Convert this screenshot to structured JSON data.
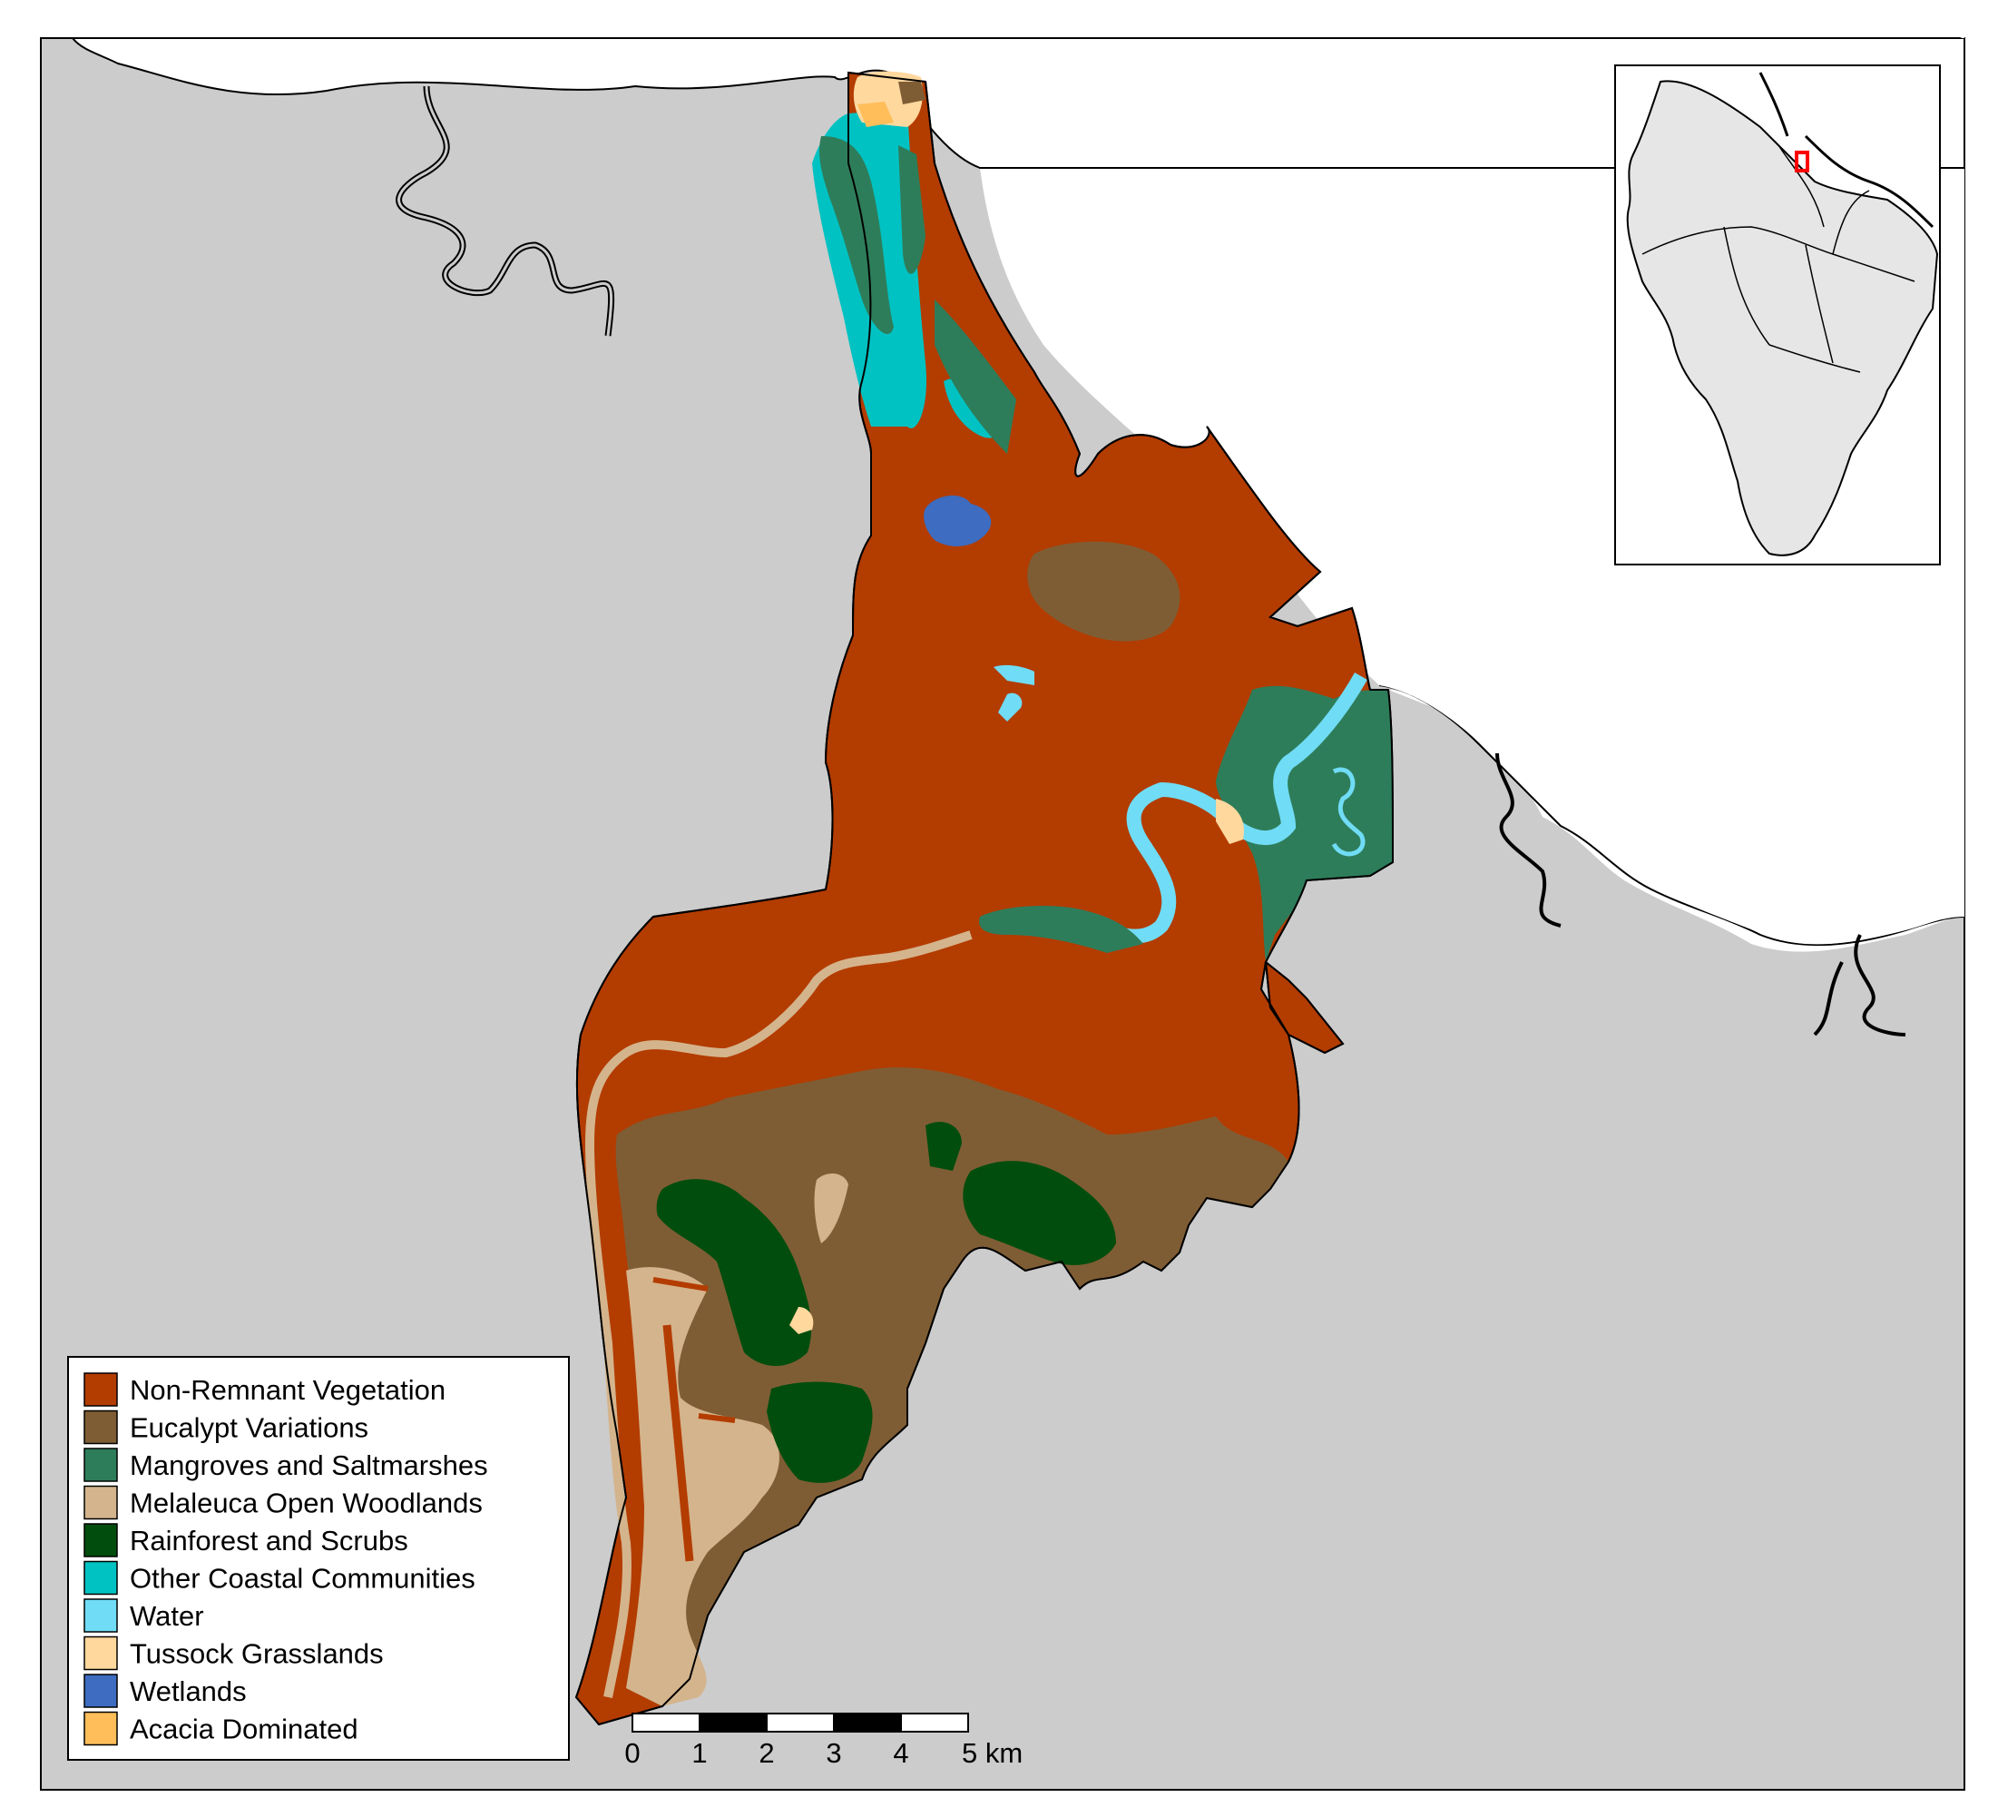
{
  "map": {
    "colors": {
      "sea": "#cccccc",
      "land": "#ffffff",
      "non_remnant": "#b33c00",
      "eucalypt": "#7f5d34",
      "mangroves": "#2e7d5a",
      "melaleuca": "#d4b48c",
      "rainforest": "#004d0d",
      "other_coastal": "#00c2c2",
      "water": "#70dcf5",
      "tussock": "#ffd89e",
      "wetlands": "#3d6cc0",
      "acacia": "#ffbe5a",
      "inset_land": "#e6e6e6",
      "inset_highlight": "#ff0000"
    },
    "legend": {
      "items": [
        {
          "label": "Non-Remnant Vegetation",
          "color": "#b33c00"
        },
        {
          "label": "Eucalypt Variations",
          "color": "#7f5d34"
        },
        {
          "label": "Mangroves and Saltmarshes",
          "color": "#2e7d5a"
        },
        {
          "label": "Melaleuca Open Woodlands",
          "color": "#d4b48c"
        },
        {
          "label": "Rainforest and Scrubs",
          "color": "#004d0d"
        },
        {
          "label": "Other Coastal Communities",
          "color": "#00c2c2"
        },
        {
          "label": "Water",
          "color": "#70dcf5"
        },
        {
          "label": "Tussock Grasslands",
          "color": "#ffd89e"
        },
        {
          "label": "Wetlands",
          "color": "#3d6cc0"
        },
        {
          "label": "Acacia Dominated",
          "color": "#ffbe5a"
        }
      ]
    },
    "scale_bar": {
      "labels": [
        "0",
        "1",
        "2",
        "3",
        "4",
        "5 km"
      ]
    }
  }
}
